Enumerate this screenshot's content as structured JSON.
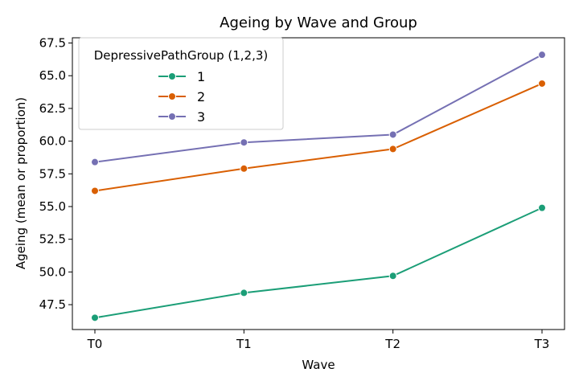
{
  "chart_data": {
    "type": "line",
    "title": "Ageing by Wave and Group",
    "xlabel": "Wave",
    "ylabel": "Ageing (mean or proportion)",
    "categories": [
      "T0",
      "T1",
      "T2",
      "T3"
    ],
    "ylim": [
      45.6,
      67.9
    ],
    "yticks": [
      "47.5",
      "50.0",
      "52.5",
      "55.0",
      "57.5",
      "60.0",
      "62.5",
      "65.0",
      "67.5"
    ],
    "grid": false,
    "legend": {
      "title": "DepressivePathGroup (1,2,3)",
      "placement": "top-left"
    },
    "series": [
      {
        "name": "1",
        "color": "#1b9e77",
        "values": [
          46.5,
          48.4,
          49.7,
          54.9
        ]
      },
      {
        "name": "2",
        "color": "#d95f02",
        "values": [
          56.2,
          57.9,
          59.4,
          64.4
        ]
      },
      {
        "name": "3",
        "color": "#7570b3",
        "values": [
          58.4,
          59.9,
          60.5,
          66.6
        ]
      }
    ]
  }
}
